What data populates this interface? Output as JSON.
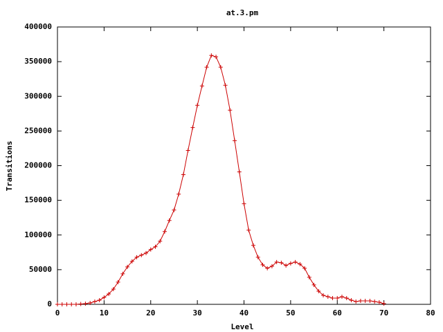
{
  "chart_data": {
    "type": "line",
    "title": "at.3.pm",
    "x_label": "Level",
    "y_label": "Transitions",
    "x": [
      0,
      1,
      2,
      3,
      4,
      5,
      6,
      7,
      8,
      9,
      10,
      11,
      12,
      13,
      14,
      15,
      16,
      17,
      18,
      19,
      20,
      21,
      22,
      23,
      24,
      25,
      26,
      27,
      28,
      29,
      30,
      31,
      32,
      33,
      34,
      35,
      36,
      37,
      38,
      39,
      40,
      41,
      42,
      43,
      44,
      45,
      46,
      47,
      48,
      49,
      50,
      51,
      52,
      53,
      54,
      55,
      56,
      57,
      58,
      59,
      60,
      61,
      62,
      63,
      64,
      65,
      66,
      67,
      68,
      69,
      70
    ],
    "series": [
      {
        "name": "at.3.pm",
        "color": "#cc0000",
        "values": [
          0,
          0,
          0,
          0,
          0,
          500,
          1000,
          2000,
          4000,
          6000,
          10000,
          15000,
          22000,
          32000,
          44000,
          54000,
          62000,
          68000,
          71000,
          74000,
          79000,
          83000,
          91000,
          105000,
          121000,
          136000,
          159000,
          187000,
          222000,
          255000,
          287000,
          315000,
          342000,
          359000,
          357000,
          342000,
          316000,
          280000,
          236000,
          191000,
          145000,
          107000,
          85000,
          68000,
          57000,
          52000,
          55000,
          61000,
          60000,
          56000,
          59000,
          61000,
          58000,
          52000,
          39000,
          28000,
          19000,
          13000,
          11000,
          9000,
          9000,
          11000,
          9000,
          6000,
          4000,
          5000,
          5000,
          5000,
          4000,
          3000,
          1000
        ]
      }
    ],
    "xlim": [
      0,
      80
    ],
    "xticks": [
      0,
      10,
      20,
      30,
      40,
      50,
      60,
      70,
      80
    ],
    "ylim": [
      0,
      400000
    ],
    "yticks": [
      0,
      50000,
      100000,
      150000,
      200000,
      250000,
      300000,
      350000,
      400000
    ]
  }
}
